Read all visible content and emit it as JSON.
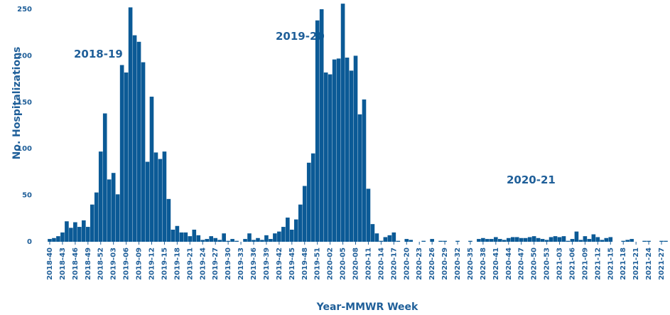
{
  "chart_data": {
    "type": "bar",
    "x_label": "Year-MMWR Week",
    "y_label": "No. Hospitalizations",
    "annotations": [
      "2018-19",
      "2019-20",
      "2020-21"
    ],
    "color": "#0b5a96",
    "ylim": [
      0,
      260
    ],
    "yticks": [
      0,
      50,
      100,
      150,
      200,
      250
    ],
    "grid": false,
    "categories": [
      "2018-40",
      null,
      null,
      "2018-43",
      null,
      null,
      "2018-46",
      null,
      null,
      "2018-49",
      null,
      null,
      "2018-52",
      null,
      null,
      "2019-03",
      null,
      null,
      "2019-06",
      null,
      null,
      "2019-09",
      null,
      null,
      "2019-12",
      null,
      null,
      "2019-15",
      null,
      null,
      "2019-18",
      null,
      null,
      "2019-21",
      null,
      null,
      "2019-24",
      null,
      null,
      "2019-27",
      null,
      null,
      "2019-30",
      null,
      null,
      "2019-33",
      null,
      null,
      "2019-36",
      null,
      null,
      "2019-39",
      null,
      null,
      "2019-42",
      null,
      null,
      "2019-45",
      null,
      null,
      "2019-48",
      null,
      null,
      "2019-51",
      null,
      null,
      "2020-02",
      null,
      null,
      "2020-05",
      null,
      null,
      "2020-08",
      null,
      null,
      "2020-11",
      null,
      null,
      "2020-14",
      null,
      null,
      "2020-17",
      null,
      null,
      "2020-20",
      null,
      null,
      "2020-23",
      null,
      null,
      "2020-26",
      null,
      null,
      "2020-29",
      null,
      null,
      "2020-32",
      null,
      null,
      "2020-35",
      null,
      null,
      "2020-38",
      null,
      null,
      "2020-41",
      null,
      null,
      "2020-44",
      null,
      null,
      "2020-47",
      null,
      null,
      "2020-50",
      null,
      null,
      "2020-53",
      null,
      null,
      "2021-03",
      null,
      null,
      "2021-06",
      null,
      null,
      "2021-09",
      null,
      null,
      "2021-12",
      null,
      null,
      "2021-15",
      null,
      null,
      "2021-18",
      null,
      null,
      "2021-21",
      null,
      null,
      "2021-24",
      null,
      null,
      "2021-27",
      null
    ],
    "values": [
      3,
      4,
      6,
      10,
      22,
      15,
      21,
      16,
      23,
      16,
      40,
      53,
      97,
      138,
      67,
      74,
      51,
      190,
      182,
      252,
      222,
      215,
      193,
      86,
      156,
      96,
      89,
      97,
      46,
      13,
      17,
      10,
      10,
      6,
      13,
      7,
      2,
      3,
      6,
      4,
      2,
      9,
      1,
      3,
      1,
      0,
      3,
      9,
      2,
      4,
      2,
      7,
      3,
      9,
      11,
      16,
      26,
      13,
      24,
      40,
      60,
      85,
      95,
      238,
      250,
      182,
      180,
      196,
      197,
      256,
      198,
      184,
      200,
      137,
      153,
      57,
      19,
      9,
      1,
      5,
      7,
      10,
      1,
      0,
      3,
      2,
      0,
      0,
      1,
      0,
      3,
      0,
      1,
      1,
      0,
      0,
      1,
      0,
      0,
      1,
      0,
      3,
      4,
      3,
      3,
      5,
      3,
      2,
      4,
      5,
      5,
      4,
      4,
      5,
      6,
      4,
      3,
      2,
      5,
      6,
      5,
      6,
      1,
      3,
      11,
      2,
      6,
      3,
      8,
      5,
      2,
      4,
      5,
      0,
      0,
      1,
      2,
      3,
      0,
      0,
      1,
      1,
      0,
      0,
      1,
      1
    ]
  }
}
